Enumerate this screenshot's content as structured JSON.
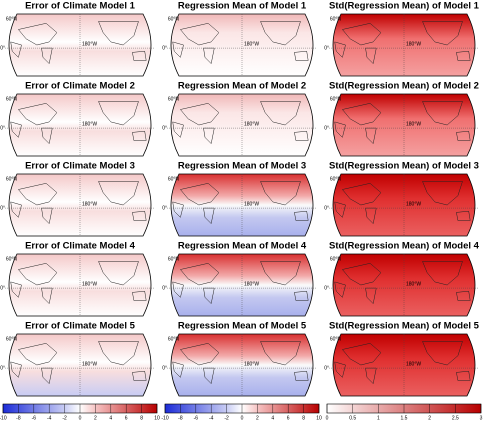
{
  "panels": [
    [
      "Error of Climate Model 1",
      "Regression Mean of Model 1",
      "Std(Regression Mean) of Model 1"
    ],
    [
      "Error of Climate Model 2",
      "Regression Mean of Model 2",
      "Std(Regression Mean) of Model 2"
    ],
    [
      "Error of Climate Model 3",
      "Regression Mean of Model 3",
      "Std(Regression Mean) of Model 3"
    ],
    [
      "Error of Climate Model 4",
      "Regression Mean of Model 4",
      "Std(Regression Mean) of Model 4"
    ],
    [
      "Error of Climate Model 5",
      "Regression Mean of Model 5",
      "Std(Regression Mean) of Model 5"
    ]
  ],
  "map_labels": {
    "lat_top": "60°N",
    "lat_mid": "0°",
    "lon": "180°W"
  },
  "colorbars": [
    {
      "lim": [
        -10,
        10
      ],
      "ticks": [
        -10,
        -8,
        -6,
        -4,
        -2,
        0,
        2,
        4,
        6,
        8,
        10
      ]
    },
    {
      "lim": [
        -10,
        10
      ],
      "ticks": [
        -10,
        -8,
        -6,
        -4,
        -2,
        0,
        2,
        4,
        6,
        8,
        10
      ]
    },
    {
      "lim": [
        0,
        3
      ],
      "ticks": [
        0,
        0.5,
        1,
        1.5,
        2,
        2.5,
        3
      ]
    }
  ]
}
